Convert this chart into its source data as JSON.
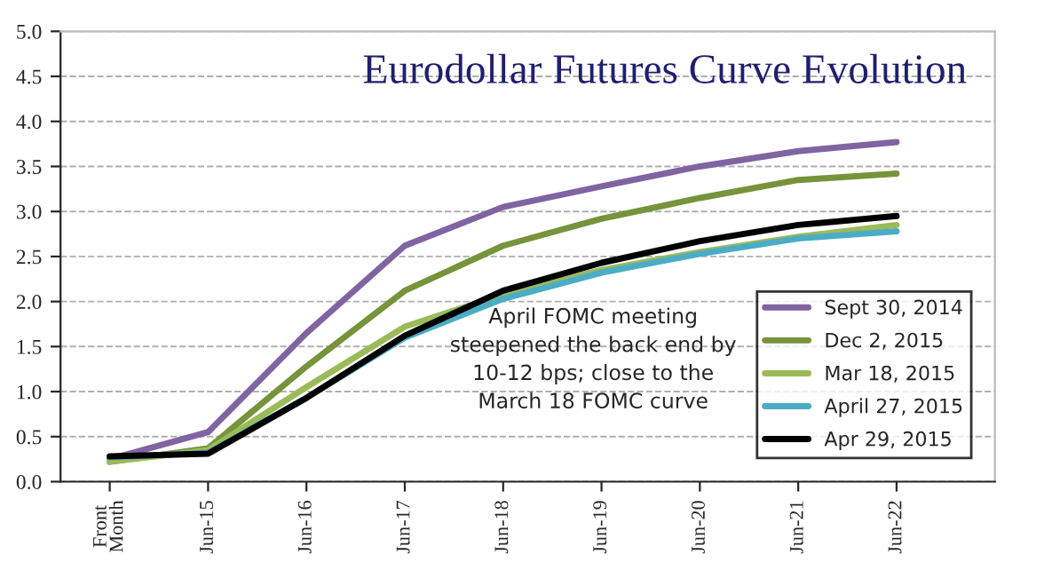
{
  "chart_data": {
    "type": "line",
    "title": "Eurodollar Futures Curve Evolution",
    "categories": [
      "Front\nMonth",
      "Jun-15",
      "Jun-16",
      "Jun-17",
      "Jun-18",
      "Jun-19",
      "Jun-20",
      "Jun-21",
      "Jun-22"
    ],
    "series": [
      {
        "name": "Sept 30, 2014",
        "color": "#8064a2",
        "values": [
          0.25,
          0.55,
          1.65,
          2.62,
          3.05,
          3.28,
          3.5,
          3.67,
          3.77
        ]
      },
      {
        "name": "Dec 2, 2015",
        "color": "#77933c",
        "values": [
          0.22,
          0.37,
          1.28,
          2.12,
          2.62,
          2.92,
          3.15,
          3.35,
          3.42
        ]
      },
      {
        "name": "Mar 18, 2015",
        "color": "#9bbb59",
        "values": [
          0.22,
          0.35,
          1.05,
          1.72,
          2.08,
          2.35,
          2.55,
          2.72,
          2.85
        ]
      },
      {
        "name": "April 27, 2015",
        "color": "#4bacc6",
        "values": [
          0.27,
          0.32,
          0.93,
          1.6,
          2.03,
          2.32,
          2.53,
          2.7,
          2.78
        ]
      },
      {
        "name": "Apr 29, 2015",
        "color": "#000000",
        "values": [
          0.28,
          0.31,
          0.93,
          1.62,
          2.12,
          2.43,
          2.67,
          2.85,
          2.95
        ]
      }
    ],
    "ylim": [
      0,
      5
    ],
    "yticks": [
      {
        "value": 0,
        "label": "0.0"
      },
      {
        "value": 0.5,
        "label": "0.5"
      },
      {
        "value": 1,
        "label": "1.0"
      },
      {
        "value": 1.5,
        "label": "1.5"
      },
      {
        "value": 2,
        "label": "2.0"
      },
      {
        "value": 2.5,
        "label": "2.5"
      },
      {
        "value": 3,
        "label": "3.0"
      },
      {
        "value": 3.5,
        "label": "3.5"
      },
      {
        "value": 4,
        "label": "4.0"
      },
      {
        "value": 4.5,
        "label": "4.5"
      },
      {
        "value": 5,
        "label": "5.0"
      }
    ],
    "grid": "y",
    "legend": "bottom right",
    "marker": "none",
    "line_style": "solid",
    "annotations": [
      "April FOMC meeting\nsteepened the back end by\n10-12 bps; close to the\nMarch 18 FOMC curve"
    ]
  }
}
